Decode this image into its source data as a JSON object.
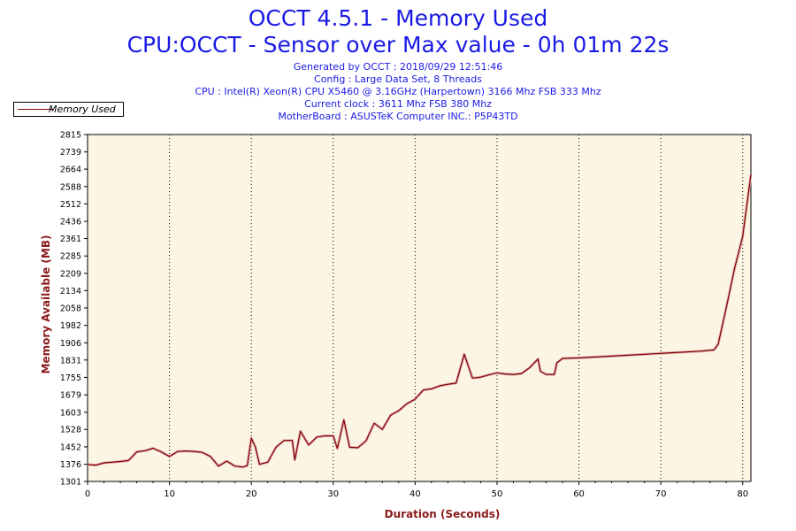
{
  "header": {
    "title": "OCCT 4.5.1 - Memory Used",
    "subtitle": "CPU:OCCT - Sensor over Max value - 0h 01m 22s",
    "info_lines": [
      "Generated by OCCT : 2018/09/29 12:51:46",
      "Config : Large Data Set, 8 Threads",
      "CPU : Intel(R) Xeon(R) CPU X5460 @ 3.16GHz (Harpertown) 3166 Mhz FSB 333 Mhz",
      "Current clock : 3611 Mhz FSB 380 Mhz",
      "MotherBoard : ASUSTeK Computer INC.: P5P43TD"
    ]
  },
  "colors": {
    "title": "#1a1ae6",
    "axis_label": "#8b1a1a",
    "series": "#800000",
    "plot_background": "#fdf5e3"
  },
  "chart_data": {
    "type": "line",
    "xlabel": "Duration (Seconds)",
    "ylabel": "Memory Available (MB)",
    "xlim": [
      0,
      81
    ],
    "ylim": [
      1301,
      2815
    ],
    "x_ticks": [
      0,
      10,
      20,
      30,
      40,
      50,
      60,
      70,
      80
    ],
    "y_ticks": [
      1301,
      1376,
      1452,
      1528,
      1603,
      1679,
      1755,
      1831,
      1906,
      1982,
      2058,
      2134,
      2209,
      2285,
      2361,
      2436,
      2512,
      2588,
      2664,
      2739,
      2815
    ],
    "grid": "vertical-dotted",
    "legend": "top-left",
    "series": [
      {
        "name": "Memory Used",
        "x": [
          0,
          1,
          2,
          3,
          4,
          5,
          6,
          7,
          8,
          9,
          10,
          11,
          12,
          13,
          14,
          15,
          16,
          17,
          18,
          19,
          19.5,
          20,
          20.5,
          21,
          22,
          23,
          24,
          25,
          25.3,
          26,
          27,
          28,
          29,
          30,
          30.5,
          31.3,
          32,
          33,
          34,
          35,
          36,
          37,
          38,
          39,
          40,
          41,
          42,
          43,
          44,
          45,
          46,
          47,
          48,
          49,
          50,
          51,
          52,
          53,
          54,
          55,
          55.3,
          56,
          57,
          57.3,
          58,
          60,
          65,
          70,
          75,
          76.5,
          77,
          78,
          79,
          80,
          81
        ],
        "values": [
          1375,
          1372,
          1382,
          1385,
          1388,
          1392,
          1430,
          1435,
          1446,
          1430,
          1410,
          1432,
          1434,
          1432,
          1428,
          1410,
          1368,
          1390,
          1368,
          1364,
          1370,
          1490,
          1450,
          1376,
          1385,
          1450,
          1480,
          1480,
          1395,
          1520,
          1460,
          1495,
          1500,
          1500,
          1445,
          1570,
          1450,
          1448,
          1478,
          1555,
          1528,
          1590,
          1610,
          1640,
          1660,
          1700,
          1705,
          1718,
          1725,
          1730,
          1856,
          1752,
          1756,
          1766,
          1775,
          1770,
          1768,
          1772,
          1798,
          1835,
          1782,
          1768,
          1768,
          1818,
          1838,
          1840,
          1850,
          1860,
          1870,
          1875,
          1900,
          2060,
          2230,
          2370,
          2640
        ]
      }
    ]
  }
}
